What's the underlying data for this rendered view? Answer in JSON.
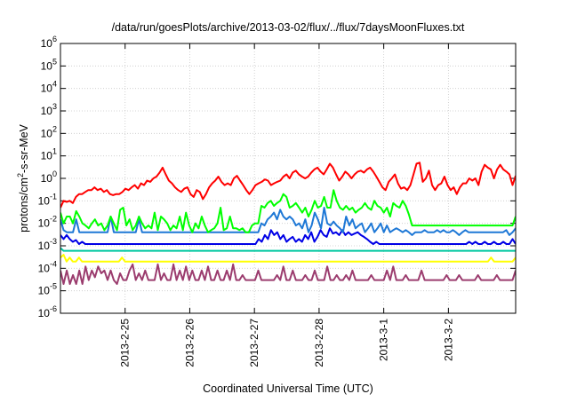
{
  "chart_data": {
    "type": "line",
    "title": "/data/run/goesPlots/archive/2013-03-02/flux/../flux/7daysMoonFluxes.txt",
    "xlabel": "Coordinated Universal Time (UTC)",
    "ylabel": "protons/cm2-s-sr-MeV",
    "yscale": "log",
    "ylim_exp": [
      -6,
      6
    ],
    "x_range_days": [
      0,
      7.04
    ],
    "x_ticks": [
      {
        "label": "2013-2-25",
        "day": 1
      },
      {
        "label": "2013-2-26",
        "day": 2
      },
      {
        "label": "2013-2-27",
        "day": 3
      },
      {
        "label": "2013-2-28",
        "day": 4
      },
      {
        "label": "2013-3-1",
        "day": 5
      },
      {
        "label": "2013-3-2",
        "day": 6
      }
    ],
    "y_ticks_exp": [
      -6,
      -5,
      -4,
      -3,
      -2,
      -1,
      0,
      1,
      2,
      3,
      4,
      5,
      6
    ],
    "grid": true,
    "legend": "none",
    "series": [
      {
        "color": "#ff0000",
        "values": [
          0.05,
          0.1,
          0.09,
          0.1,
          0.08,
          0.15,
          0.2,
          0.2,
          0.25,
          0.3,
          0.3,
          0.4,
          0.3,
          0.35,
          0.25,
          0.3,
          0.2,
          0.18,
          0.2,
          0.2,
          0.25,
          0.35,
          0.3,
          0.4,
          0.5,
          0.35,
          0.6,
          0.5,
          0.8,
          0.7,
          1.0,
          1.2,
          1.8,
          3.0,
          1.5,
          0.8,
          0.6,
          0.4,
          0.3,
          0.25,
          0.35,
          0.4,
          0.2,
          0.15,
          0.3,
          0.25,
          0.12,
          0.2,
          0.4,
          0.6,
          0.8,
          1.2,
          0.7,
          0.5,
          0.6,
          0.5,
          1.0,
          1.3,
          0.8,
          0.5,
          0.3,
          0.2,
          0.3,
          0.5,
          0.6,
          0.7,
          0.9,
          0.8,
          0.5,
          0.6,
          0.7,
          0.8,
          1.2,
          1.5,
          1.0,
          1.8,
          2.2,
          1.5,
          1.2,
          1.0,
          1.2,
          1.8,
          2.5,
          3.0,
          2.0,
          1.5,
          2.5,
          4.5,
          3.0,
          1.5,
          0.8,
          1.2,
          2.0,
          1.5,
          1.0,
          1.5,
          2.0,
          2.2,
          1.8,
          2.5,
          3.0,
          2.0,
          1.2,
          0.7,
          0.4,
          0.3,
          0.7,
          1.0,
          1.5,
          0.6,
          0.35,
          0.4,
          0.3,
          0.5,
          1.5,
          4.5,
          5.0,
          0.7,
          1.0,
          2.2,
          0.5,
          0.3,
          0.5,
          0.6,
          1.2,
          0.5,
          0.3,
          0.4,
          0.2,
          0.4,
          0.6,
          0.6,
          1.0,
          0.8,
          1.0,
          0.5,
          2.0,
          4.0,
          3.0,
          2.5,
          1.0,
          2.5,
          4.0,
          2.5,
          2.0,
          1.5,
          0.5,
          1.3
        ]
      },
      {
        "color": "#00ff00",
        "values": [
          0.03,
          0.01,
          0.02,
          0.02,
          0.01,
          0.035,
          0.02,
          0.01,
          0.008,
          0.006,
          0.01,
          0.015,
          0.008,
          0.01,
          0.005,
          0.008,
          0.02,
          0.01,
          0.005,
          0.04,
          0.05,
          0.008,
          0.015,
          0.005,
          0.008,
          0.02,
          0.01,
          0.006,
          0.008,
          0.006,
          0.03,
          0.005,
          0.02,
          0.015,
          0.01,
          0.005,
          0.008,
          0.006,
          0.02,
          0.005,
          0.03,
          0.008,
          0.004,
          0.01,
          0.006,
          0.02,
          0.008,
          0.004,
          0.005,
          0.006,
          0.01,
          0.05,
          0.005,
          0.006,
          0.02,
          0.006,
          0.006,
          0.005,
          0.006,
          0.004,
          0.004,
          0.008,
          0.01,
          0.01,
          0.06,
          0.05,
          0.08,
          0.1,
          0.06,
          0.08,
          0.1,
          0.2,
          0.15,
          0.05,
          0.06,
          0.08,
          0.05,
          0.03,
          0.05,
          0.02,
          0.04,
          0.1,
          0.05,
          0.06,
          0.15,
          0.05,
          0.05,
          0.3,
          0.1,
          0.05,
          0.04,
          0.06,
          0.04,
          0.05,
          0.03,
          0.04,
          0.05,
          0.08,
          0.05,
          0.04,
          0.1,
          0.06,
          0.05,
          0.03,
          0.05,
          0.02,
          0.08,
          0.06,
          0.05,
          0.1,
          0.06,
          0.025,
          0.008,
          0.008,
          0.008,
          0.008,
          0.008,
          0.008,
          0.008,
          0.008,
          0.008,
          0.008,
          0.008,
          0.008,
          0.008,
          0.008,
          0.008,
          0.008,
          0.008,
          0.008,
          0.008,
          0.008,
          0.008,
          0.008,
          0.008,
          0.008,
          0.008,
          0.008,
          0.008,
          0.008,
          0.008,
          0.008,
          0.008,
          0.008,
          0.008,
          0.02
        ]
      },
      {
        "color": "#1e78d6",
        "values": [
          0.015,
          0.005,
          0.004,
          0.004,
          0.004,
          0.015,
          0.004,
          0.004,
          0.004,
          0.004,
          0.004,
          0.004,
          0.004,
          0.004,
          0.004,
          0.004,
          0.02,
          0.004,
          0.004,
          0.004,
          0.004,
          0.004,
          0.004,
          0.004,
          0.004,
          0.015,
          0.004,
          0.004,
          0.004,
          0.004,
          0.004,
          0.004,
          0.004,
          0.004,
          0.004,
          0.004,
          0.004,
          0.004,
          0.004,
          0.004,
          0.004,
          0.004,
          0.004,
          0.004,
          0.004,
          0.004,
          0.004,
          0.004,
          0.004,
          0.004,
          0.004,
          0.004,
          0.004,
          0.004,
          0.004,
          0.004,
          0.004,
          0.004,
          0.004,
          0.004,
          0.004,
          0.004,
          0.004,
          0.004,
          0.01,
          0.008,
          0.015,
          0.02,
          0.03,
          0.015,
          0.04,
          0.02,
          0.015,
          0.02,
          0.015,
          0.008,
          0.01,
          0.006,
          0.015,
          0.004,
          0.008,
          0.03,
          0.015,
          0.006,
          0.05,
          0.01,
          0.008,
          0.012,
          0.008,
          0.006,
          0.004,
          0.02,
          0.008,
          0.015,
          0.006,
          0.008,
          0.01,
          0.004,
          0.006,
          0.01,
          0.004,
          0.006,
          0.01,
          0.004,
          0.008,
          0.004,
          0.005,
          0.006,
          0.005,
          0.004,
          0.005,
          0.004,
          0.003,
          0.004,
          0.004,
          0.004,
          0.005,
          0.004,
          0.004,
          0.004,
          0.005,
          0.004,
          0.005,
          0.004,
          0.004,
          0.005,
          0.004,
          0.003,
          0.004,
          0.005,
          0.004,
          0.004,
          0.004,
          0.004,
          0.004,
          0.004,
          0.004,
          0.004,
          0.004,
          0.004,
          0.004,
          0.004,
          0.005,
          0.003,
          0.004,
          0.006
        ]
      },
      {
        "color": "#0000e6",
        "values": [
          0.003,
          0.002,
          0.003,
          0.002,
          0.0015,
          0.0018,
          0.0012,
          0.0015,
          0.0012,
          0.0012,
          0.0012,
          0.0012,
          0.0012,
          0.0012,
          0.0012,
          0.0012,
          0.0012,
          0.0012,
          0.0012,
          0.0012,
          0.0012,
          0.0012,
          0.0012,
          0.0012,
          0.0012,
          0.0012,
          0.0012,
          0.0012,
          0.0012,
          0.0012,
          0.0012,
          0.0012,
          0.0012,
          0.0012,
          0.0012,
          0.0012,
          0.0012,
          0.0012,
          0.0012,
          0.0012,
          0.0012,
          0.0012,
          0.0012,
          0.0012,
          0.0012,
          0.0012,
          0.0012,
          0.0012,
          0.0012,
          0.0012,
          0.0012,
          0.0012,
          0.0012,
          0.0012,
          0.0012,
          0.0012,
          0.0012,
          0.0012,
          0.0012,
          0.0012,
          0.0012,
          0.0012,
          0.0012,
          0.0012,
          0.002,
          0.0015,
          0.003,
          0.002,
          0.005,
          0.003,
          0.004,
          0.002,
          0.003,
          0.0015,
          0.002,
          0.0025,
          0.0015,
          0.002,
          0.0015,
          0.003,
          0.002,
          0.004,
          0.0015,
          0.0025,
          0.005,
          0.003,
          0.0025,
          0.006,
          0.0035,
          0.004,
          0.003,
          0.005,
          0.003,
          0.004,
          0.003,
          0.0035,
          0.004,
          0.003,
          0.0025,
          0.002,
          0.0015,
          0.0012,
          0.0015,
          0.0012,
          0.0012,
          0.0012,
          0.0012,
          0.0012,
          0.0012,
          0.0012,
          0.0012,
          0.0012,
          0.0012,
          0.0012,
          0.0012,
          0.0012,
          0.0012,
          0.0012,
          0.0012,
          0.0012,
          0.0012,
          0.0012,
          0.0012,
          0.0012,
          0.0012,
          0.0012,
          0.0012,
          0.0012,
          0.0012,
          0.0012,
          0.0012,
          0.0012,
          0.0015,
          0.0012,
          0.0015,
          0.0012,
          0.0012,
          0.0015,
          0.0012,
          0.0012,
          0.0015,
          0.0012,
          0.0012,
          0.0015,
          0.0012,
          0.0012,
          0.002,
          0.0012
        ]
      },
      {
        "color": "#00c8a0",
        "values": [
          0.0008,
          0.0006,
          0.0006,
          0.0006,
          0.0006,
          0.0006,
          0.0006,
          0.0006,
          0.0006,
          0.0006,
          0.0006,
          0.0006,
          0.0006,
          0.0006,
          0.0006,
          0.0006,
          0.0006,
          0.0006,
          0.0006,
          0.0006,
          0.0006,
          0.0006,
          0.0006,
          0.0006,
          0.0006,
          0.0006,
          0.0006,
          0.0006,
          0.0006,
          0.0006,
          0.0006,
          0.0006,
          0.0006,
          0.0006,
          0.0006,
          0.0006,
          0.0006,
          0.0006,
          0.0006,
          0.0006,
          0.0006,
          0.0006,
          0.0006,
          0.0006,
          0.0006,
          0.0006,
          0.0006,
          0.0006,
          0.0006,
          0.0006,
          0.0006,
          0.0006,
          0.0006,
          0.0006,
          0.0006,
          0.0006,
          0.0006,
          0.0006,
          0.0006,
          0.0006,
          0.0006,
          0.0006,
          0.0006,
          0.0006,
          0.0006,
          0.0006,
          0.0006,
          0.0006,
          0.0006,
          0.0006,
          0.0006,
          0.0006,
          0.0006,
          0.0006,
          0.0006,
          0.0006,
          0.0006,
          0.0006,
          0.0006,
          0.0006,
          0.0006,
          0.0006,
          0.0006,
          0.0006,
          0.0006,
          0.0006,
          0.0006,
          0.0006,
          0.0006,
          0.0006,
          0.0006,
          0.0006,
          0.0006,
          0.0006,
          0.0006,
          0.0006,
          0.0006,
          0.0006,
          0.0006,
          0.0006,
          0.0006,
          0.0006,
          0.0006,
          0.0006,
          0.0006,
          0.0006,
          0.0006,
          0.0006,
          0.0006,
          0.0006,
          0.0006,
          0.0006,
          0.0006,
          0.0006,
          0.0006,
          0.0006,
          0.0006,
          0.0006,
          0.0006,
          0.0006,
          0.0006,
          0.0006,
          0.0006,
          0.0006,
          0.0006,
          0.0006,
          0.0006,
          0.0006,
          0.0006,
          0.0006,
          0.0006,
          0.0006,
          0.0006,
          0.0006,
          0.0006,
          0.0006,
          0.0006,
          0.0006,
          0.0006,
          0.0006,
          0.0006,
          0.0006,
          0.0006,
          0.0006,
          0.0006,
          0.0006,
          0.0006,
          0.0006
        ]
      },
      {
        "color": "#ffff00",
        "values": [
          0.0003,
          0.0004,
          0.0002,
          0.0003,
          0.0002,
          0.0002,
          0.0003,
          0.0002,
          0.0002,
          0.0002,
          0.0002,
          0.0002,
          0.0002,
          0.0002,
          0.0002,
          0.0002,
          0.0002,
          0.0002,
          0.0002,
          0.0002,
          0.0003,
          0.0002,
          0.0002,
          0.0002,
          0.0002,
          0.0002,
          0.0002,
          0.0002,
          0.0002,
          0.0002,
          0.0002,
          0.0002,
          0.0002,
          0.0002,
          0.0002,
          0.0002,
          0.0002,
          0.0002,
          0.0002,
          0.0002,
          0.0002,
          0.0002,
          0.0002,
          0.0002,
          0.0002,
          0.0002,
          0.0002,
          0.0002,
          0.0002,
          0.0002,
          0.0002,
          0.0002,
          0.0002,
          0.0002,
          0.0002,
          0.0002,
          0.0002,
          0.0002,
          0.0002,
          0.0002,
          0.0002,
          0.0002,
          0.0002,
          0.0002,
          0.0002,
          0.0002,
          0.0002,
          0.0002,
          0.0002,
          0.0002,
          0.0002,
          0.0002,
          0.0002,
          0.0002,
          0.0002,
          0.0002,
          0.0002,
          0.0002,
          0.0002,
          0.0002,
          0.0002,
          0.0002,
          0.0002,
          0.0002,
          0.0002,
          0.0002,
          0.0002,
          0.0002,
          0.0002,
          0.0002,
          0.0002,
          0.0002,
          0.0002,
          0.0002,
          0.0002,
          0.0002,
          0.0002,
          0.0002,
          0.0002,
          0.0002,
          0.0002,
          0.0002,
          0.0002,
          0.0002,
          0.0002,
          0.0002,
          0.0002,
          0.0002,
          0.0002,
          0.0002,
          0.0002,
          0.0002,
          0.0002,
          0.0002,
          0.0002,
          0.0002,
          0.0002,
          0.0002,
          0.0002,
          0.0002,
          0.0002,
          0.0002,
          0.0002,
          0.0002,
          0.0002,
          0.0002,
          0.0002,
          0.0002,
          0.0002,
          0.0002,
          0.0002,
          0.0002,
          0.0002,
          0.0002,
          0.0002,
          0.0002,
          0.0002,
          0.0002,
          0.0002,
          0.0002,
          0.0003,
          0.0002,
          0.0002,
          0.0002,
          0.0002,
          0.0002,
          0.0002,
          0.0002,
          0.0003
        ]
      },
      {
        "color": "#9b3c6e",
        "values": [
          8e-05,
          2e-05,
          8e-05,
          2e-05,
          5e-05,
          2e-05,
          8e-05,
          2e-05,
          0.00012,
          3e-05,
          8e-05,
          4e-05,
          0.00012,
          6e-05,
          8e-05,
          3e-05,
          8e-05,
          3e-05,
          2e-05,
          6e-05,
          3e-05,
          3e-05,
          8e-05,
          0.00015,
          3e-05,
          6e-05,
          3e-05,
          8e-05,
          3e-05,
          3e-05,
          3e-05,
          0.00015,
          3e-05,
          6e-05,
          3e-05,
          3e-05,
          0.00015,
          3e-05,
          8e-05,
          3e-05,
          0.00012,
          3e-05,
          8e-05,
          3e-05,
          3e-05,
          8e-05,
          3e-05,
          0.00012,
          3e-05,
          3e-05,
          8e-05,
          3e-05,
          3e-05,
          8e-05,
          3e-05,
          0.00015,
          3e-05,
          3e-05,
          5e-05,
          3e-05,
          3e-05,
          3e-05,
          3e-05,
          8e-05,
          3e-05,
          3e-05,
          3e-05,
          3e-05,
          3e-05,
          5e-05,
          3e-05,
          0.00012,
          3e-05,
          3e-05,
          8e-05,
          3e-05,
          3e-05,
          3e-05,
          5e-05,
          3e-05,
          3e-05,
          8e-05,
          3e-05,
          3e-05,
          3e-05,
          0.00012,
          3e-05,
          3e-05,
          5e-05,
          3e-05,
          3e-05,
          5e-05,
          3e-05,
          8e-05,
          3e-05,
          3e-05,
          3e-05,
          3e-05,
          3e-05,
          5e-05,
          3e-05,
          3e-05,
          3e-05,
          3e-05,
          8e-05,
          3e-05,
          0.00012,
          3e-05,
          3e-05,
          3e-05,
          5e-05,
          3e-05,
          3e-05,
          3e-05,
          3e-05,
          8e-05,
          3e-05,
          3e-05,
          3e-05,
          3e-05,
          3e-05,
          3e-05,
          3e-05,
          5e-05,
          3e-05,
          3e-05,
          3e-05,
          5e-05,
          3e-05,
          3e-05,
          3e-05,
          3e-05,
          3e-05,
          5e-05,
          3e-05,
          3e-05,
          3e-05,
          3e-05,
          3e-05,
          5e-05,
          3e-05,
          3e-05,
          3e-05,
          3e-05,
          3e-05,
          8e-05
        ]
      }
    ]
  }
}
